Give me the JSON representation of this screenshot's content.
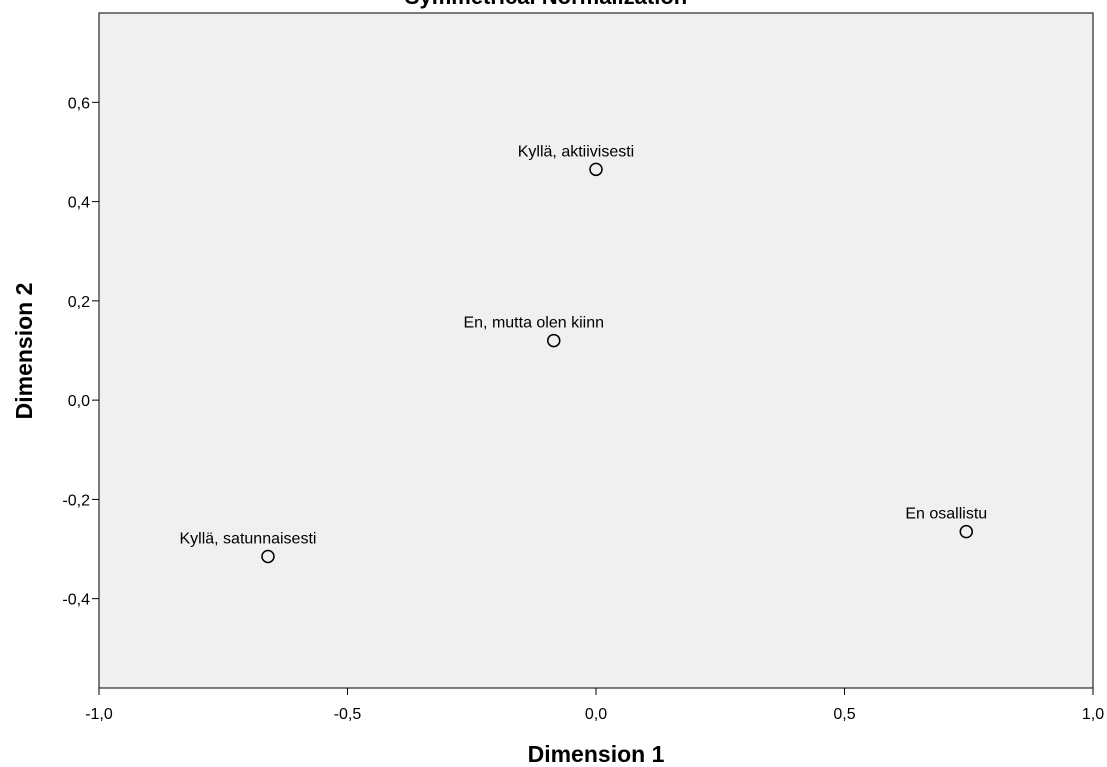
{
  "chart_data": {
    "type": "scatter",
    "title": "Symmetrical Normalization",
    "xlabel": "Dimension 1",
    "ylabel": "Dimension 2",
    "xlim": [
      -1.0,
      1.0
    ],
    "ylim": [
      -0.58,
      0.78
    ],
    "x_ticks": [
      -1.0,
      -0.5,
      0.0,
      0.5,
      1.0
    ],
    "x_tick_labels": [
      "-1,0",
      "-0,5",
      "0,0",
      "0,5",
      "1,0"
    ],
    "y_ticks": [
      0.6,
      0.4,
      0.2,
      0.0,
      -0.2,
      -0.4
    ],
    "y_tick_labels": [
      "0,6",
      "0,4",
      "0,2",
      "0,0",
      "-0,2",
      "-0,4"
    ],
    "grid": false,
    "plot_background": "#f0f0f0",
    "marker": "open-circle",
    "points": [
      {
        "label": "Kyllä, aktiivisesti",
        "x": 0.0,
        "y": 0.465
      },
      {
        "label": "En, mutta olen kiinn",
        "x": -0.085,
        "y": 0.12
      },
      {
        "label": "En osallistu",
        "x": 0.745,
        "y": -0.265
      },
      {
        "label": "Kyllä, satunnaisesti",
        "x": -0.66,
        "y": -0.315
      }
    ]
  }
}
